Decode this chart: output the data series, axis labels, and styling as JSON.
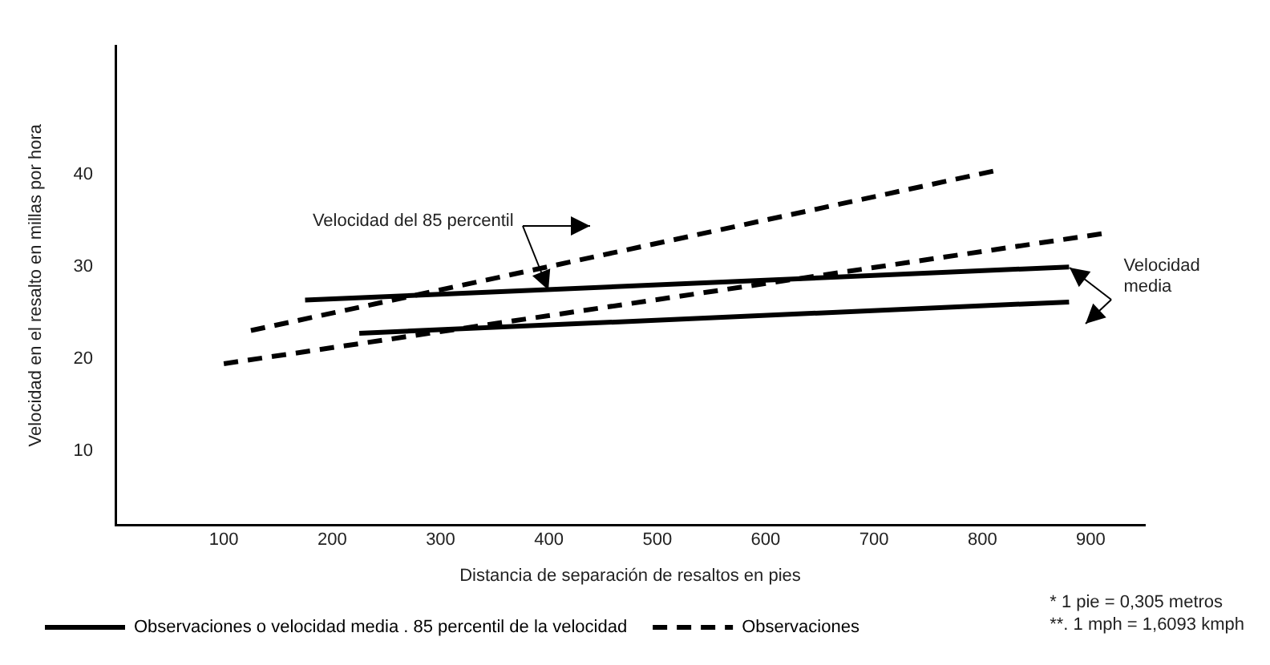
{
  "chart_data": {
    "type": "line",
    "xlabel": "Distancia de separación de resaltos en pies",
    "ylabel": "Velocidad en el resalto en millas por hora",
    "xlim": [
      0,
      950
    ],
    "xticks": [
      100,
      200,
      300,
      400,
      500,
      600,
      700,
      800,
      900
    ],
    "ylim": [
      2,
      54
    ],
    "yticks": [
      10,
      20,
      30,
      40
    ],
    "grid": false,
    "legend": "bottom",
    "series": [
      {
        "name": "Observaciones o velocidad media . 85 percentil de la velocidad",
        "color": "#000000",
        "line_style": "solid",
        "x": [
          175,
          880
        ],
        "values": [
          26.4,
          30.0
        ]
      },
      {
        "name": "Observaciones",
        "color": "#000000",
        "line_style": "dashed",
        "x": [
          100,
          910
        ],
        "values": [
          19.5,
          33.6
        ]
      },
      {
        "color": "#000000",
        "line_style": "dashed",
        "x": [
          125,
          810
        ],
        "values": [
          23.1,
          40.4
        ]
      },
      {
        "color": "#000000",
        "line_style": "solid",
        "x": [
          225,
          880
        ],
        "values": [
          22.8,
          26.2
        ]
      }
    ],
    "annotations": [
      {
        "text": "Velocidad del 85 percentil",
        "x": 400,
        "y": 27.5
      },
      {
        "text": "Velocidad\nmedia",
        "x": 880,
        "y": 30.0
      },
      "* 1 pie = 0,305 metros",
      "**. 1 mph = 1,6093 kmph"
    ]
  }
}
